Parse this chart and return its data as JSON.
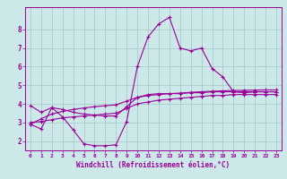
{
  "background_color": "#cce8e8",
  "grid_color": "#aacccc",
  "line_color": "#990099",
  "xlabel": "Windchill (Refroidissement éolien,°C)",
  "xlim": [
    -0.5,
    23.5
  ],
  "ylim": [
    1.5,
    9.2
  ],
  "yticks": [
    2,
    3,
    4,
    5,
    6,
    7,
    8
  ],
  "xticks": [
    0,
    1,
    2,
    3,
    4,
    5,
    6,
    7,
    8,
    9,
    10,
    11,
    12,
    13,
    14,
    15,
    16,
    17,
    18,
    19,
    20,
    21,
    22,
    23
  ],
  "series": [
    [
      2.9,
      2.65,
      3.8,
      3.3,
      2.6,
      1.85,
      1.75,
      1.75,
      1.8,
      3.05,
      6.0,
      7.6,
      8.3,
      8.65,
      7.0,
      6.85,
      7.0,
      5.9,
      5.45,
      4.65,
      4.6,
      4.65,
      4.65,
      4.65
    ],
    [
      3.9,
      3.55,
      3.8,
      3.7,
      3.55,
      3.45,
      3.4,
      3.35,
      3.35,
      3.85,
      4.35,
      4.5,
      4.55,
      4.55,
      4.55,
      4.6,
      4.6,
      4.65,
      4.65,
      4.65,
      4.65,
      4.65,
      4.65,
      4.65
    ],
    [
      3.0,
      3.05,
      3.15,
      3.25,
      3.3,
      3.35,
      3.4,
      3.45,
      3.5,
      3.75,
      4.0,
      4.1,
      4.2,
      4.25,
      4.3,
      4.35,
      4.4,
      4.45,
      4.45,
      4.5,
      4.5,
      4.5,
      4.5,
      4.5
    ],
    [
      2.9,
      3.2,
      3.45,
      3.6,
      3.7,
      3.78,
      3.85,
      3.9,
      3.95,
      4.15,
      4.35,
      4.45,
      4.5,
      4.55,
      4.58,
      4.62,
      4.65,
      4.68,
      4.7,
      4.72,
      4.73,
      4.74,
      4.75,
      4.75
    ]
  ]
}
